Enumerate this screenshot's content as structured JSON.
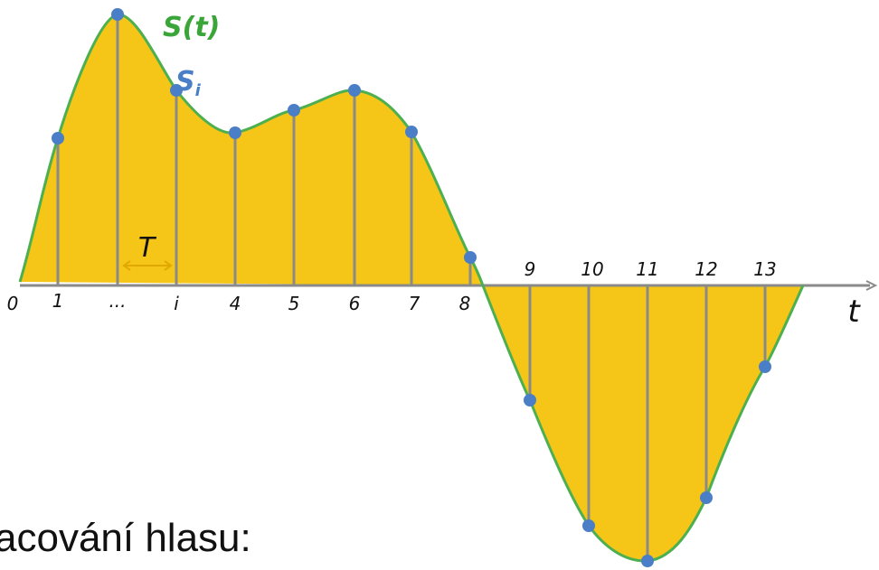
{
  "diagram": {
    "signal_label": "S(t)",
    "sample_label_main": "S",
    "sample_label_sub": "i",
    "period_label": "T",
    "axis_label": "t",
    "tick_labels": [
      "0",
      "1",
      "...",
      "i",
      "4",
      "5",
      "6",
      "7",
      "8",
      "9",
      "10",
      "11",
      "12",
      "13"
    ],
    "colors": {
      "fill": "#f5c518",
      "curve": "#4caf50",
      "points": "#4a7ec7",
      "stems": "#8a8a8a",
      "axis": "#8a8a8a",
      "label_green": "#3aa63a",
      "label_blue": "#4a7ec7",
      "arrow": "#e0a800"
    }
  },
  "caption": {
    "text": "acování hlasu:"
  }
}
